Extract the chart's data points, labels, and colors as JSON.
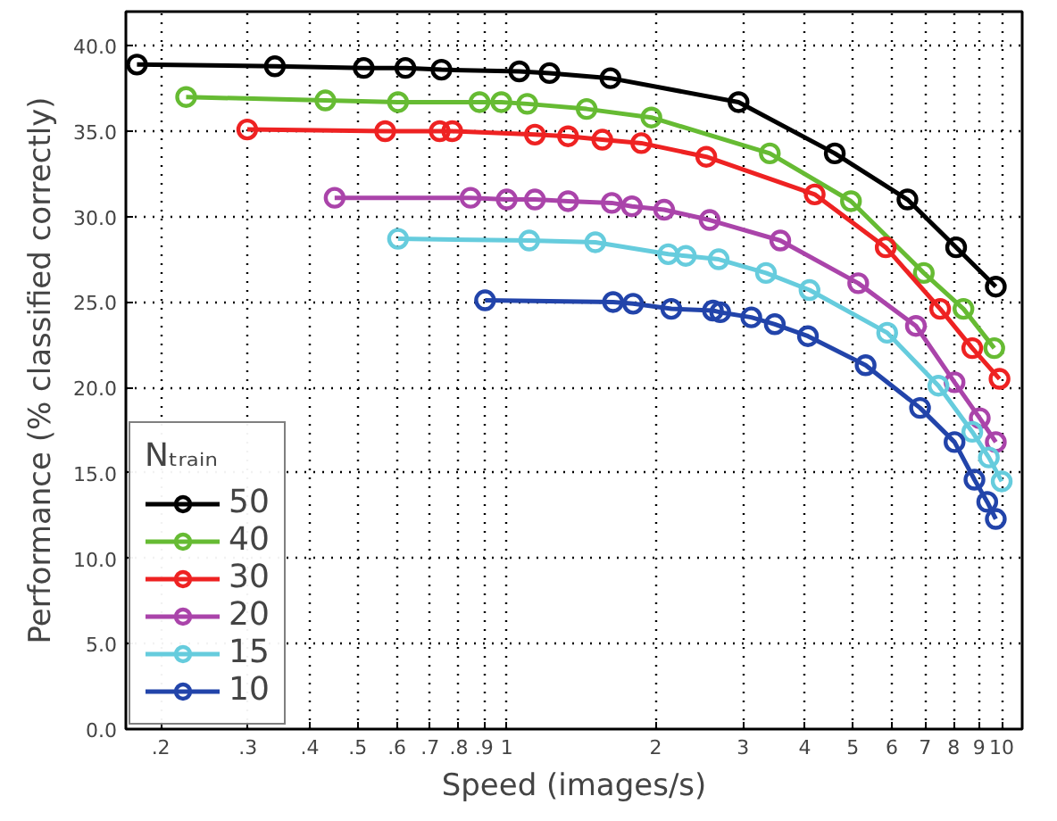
{
  "chart_data": {
    "type": "line",
    "xlabel": "Speed (images/s)",
    "ylabel": "Performance (% classified correctly)",
    "legend_title": "Nₜᵣₐᵢₙ",
    "log": "x",
    "grid": true,
    "legend": "bottom left",
    "marker": "circle",
    "line_style": "solid",
    "xlim": [
      0.17,
      11
    ],
    "ylim": [
      0,
      42
    ],
    "xticks": [
      {
        "value": 0.2,
        "label": ".2"
      },
      {
        "value": 0.3,
        "label": ".3"
      },
      {
        "value": 0.4,
        "label": ".4"
      },
      {
        "value": 0.5,
        "label": ".5"
      },
      {
        "value": 0.6,
        "label": ".6"
      },
      {
        "value": 0.7,
        "label": ".7"
      },
      {
        "value": 0.8,
        "label": ".8"
      },
      {
        "value": 0.9,
        "label": ".9"
      },
      1,
      2,
      3,
      4,
      5,
      6,
      7,
      8,
      9,
      10
    ],
    "yticks": [
      {
        "value": 0,
        "label": "0.0"
      },
      {
        "value": 5,
        "label": "5.0"
      },
      {
        "value": 10,
        "label": "10.0"
      },
      {
        "value": 15,
        "label": "15.0"
      },
      {
        "value": 20,
        "label": "20.0"
      },
      {
        "value": 25,
        "label": "25.0"
      },
      {
        "value": 30,
        "label": "30.0"
      },
      {
        "value": 35,
        "label": "35.0"
      },
      {
        "value": 40,
        "label": "40.0"
      }
    ],
    "series": [
      {
        "name": "50",
        "color": "#000000",
        "x": [
          0.179,
          0.34,
          0.514,
          0.624,
          0.738,
          1.06,
          1.22,
          1.62,
          2.94,
          4.6,
          6.45,
          8.09,
          9.73
        ],
        "values": [
          38.9,
          38.8,
          38.7,
          38.7,
          38.6,
          38.5,
          38.4,
          38.1,
          36.7,
          33.7,
          31.0,
          28.2,
          25.9
        ]
      },
      {
        "name": "40",
        "color": "#66bb33",
        "x": [
          0.225,
          0.43,
          0.603,
          0.881,
          0.975,
          1.1,
          1.45,
          1.96,
          3.4,
          4.96,
          6.96,
          8.37,
          9.66
        ],
        "values": [
          37.0,
          36.8,
          36.7,
          36.7,
          36.7,
          36.6,
          36.3,
          35.8,
          33.7,
          30.9,
          26.7,
          24.6,
          22.3
        ]
      },
      {
        "name": "30",
        "color": "#ee2222",
        "x": [
          0.299,
          0.568,
          0.732,
          0.776,
          1.14,
          1.33,
          1.56,
          1.87,
          2.53,
          4.19,
          5.83,
          7.51,
          8.72,
          9.9
        ],
        "values": [
          35.1,
          35.0,
          35.0,
          35.0,
          34.8,
          34.7,
          34.5,
          34.3,
          33.5,
          31.3,
          28.2,
          24.6,
          22.3,
          20.5
        ]
      },
      {
        "name": "20",
        "color": "#aa44aa",
        "x": [
          0.449,
          0.845,
          1.0,
          1.14,
          1.33,
          1.63,
          1.79,
          2.08,
          2.57,
          3.57,
          5.13,
          6.71,
          8.03,
          9.03,
          9.73
        ],
        "values": [
          31.1,
          31.1,
          31.0,
          31.0,
          30.9,
          30.8,
          30.6,
          30.4,
          29.8,
          28.6,
          26.1,
          23.6,
          20.3,
          18.2,
          16.8
        ]
      },
      {
        "name": "15",
        "color": "#66ccdd",
        "x": [
          0.603,
          1.11,
          1.51,
          2.12,
          2.3,
          2.68,
          3.34,
          4.09,
          5.87,
          7.45,
          8.72,
          9.42,
          10.0
        ],
        "values": [
          28.7,
          28.6,
          28.5,
          27.8,
          27.7,
          27.5,
          26.7,
          25.7,
          23.2,
          20.1,
          17.4,
          15.9,
          14.5
        ]
      },
      {
        "name": "10",
        "color": "#2244aa",
        "x": [
          0.904,
          1.64,
          1.8,
          2.15,
          2.61,
          2.7,
          3.12,
          3.48,
          4.06,
          5.31,
          6.84,
          8.03,
          8.81,
          9.35,
          9.73
        ],
        "values": [
          25.1,
          25.0,
          24.9,
          24.6,
          24.5,
          24.4,
          24.1,
          23.7,
          23.0,
          21.3,
          18.8,
          16.8,
          14.6,
          13.3,
          12.3
        ]
      }
    ]
  }
}
